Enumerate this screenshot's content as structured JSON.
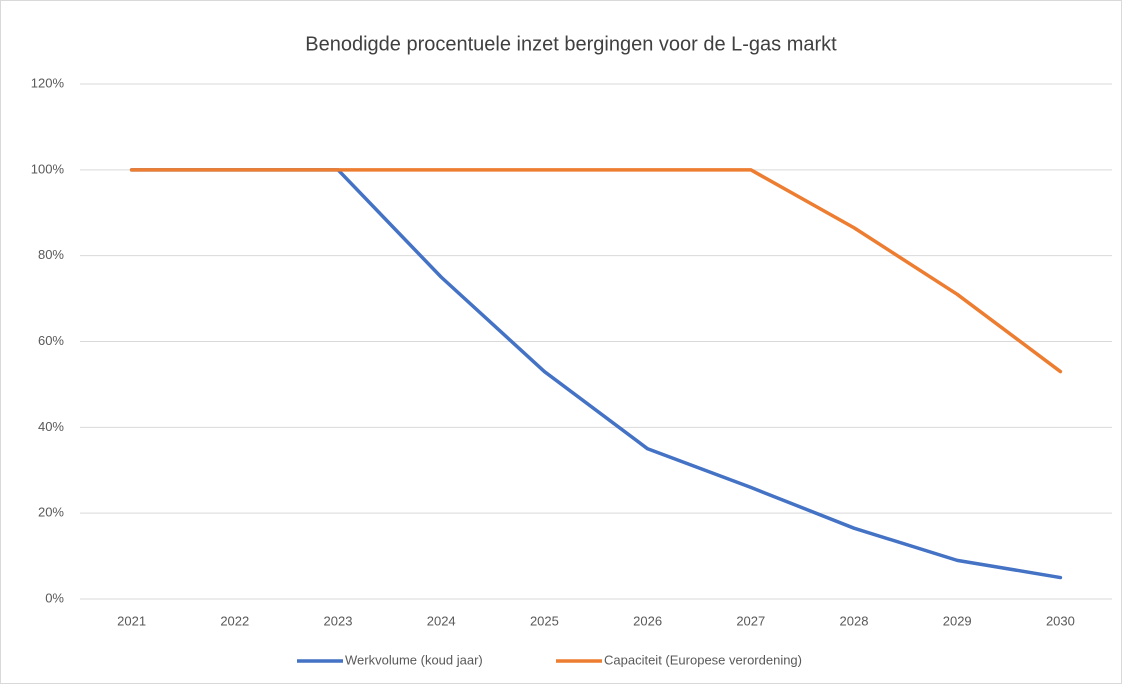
{
  "chart_data": {
    "type": "line",
    "title": "Benodigde procentuele inzet bergingen voor de L-gas markt",
    "categories": [
      "2021",
      "2022",
      "2023",
      "2024",
      "2025",
      "2026",
      "2027",
      "2028",
      "2029",
      "2030"
    ],
    "series": [
      {
        "name": "Werkvolume (koud jaar)",
        "color": "#4472c4",
        "values": [
          100,
          100,
          100,
          75,
          53,
          35,
          26,
          16.5,
          9,
          5
        ]
      },
      {
        "name": "Capaciteit (Europese verordening)",
        "color": "#ed7d31",
        "values": [
          100,
          100,
          100,
          100,
          100,
          100,
          100,
          86.5,
          71,
          53
        ]
      }
    ],
    "ylim": [
      0,
      120
    ],
    "yticks": [
      {
        "value": 0,
        "label": "0%"
      },
      {
        "value": 20,
        "label": "20%"
      },
      {
        "value": 40,
        "label": "40%"
      },
      {
        "value": 60,
        "label": "60%"
      },
      {
        "value": 80,
        "label": "80%"
      },
      {
        "value": 100,
        "label": "100%"
      },
      {
        "value": 120,
        "label": "120%"
      }
    ],
    "grid": true,
    "legend": "bottom"
  }
}
